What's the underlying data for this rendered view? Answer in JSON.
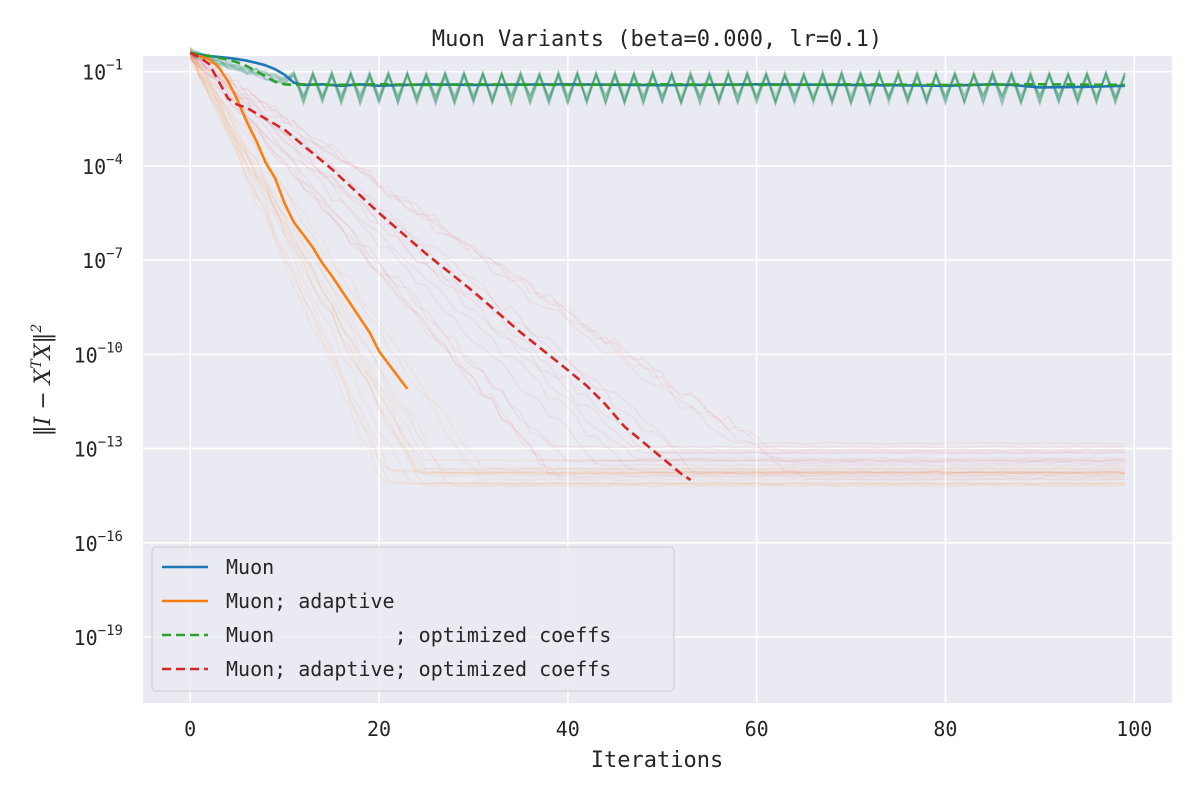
{
  "chart_data": {
    "type": "line",
    "title": "Muon Variants (beta=0.000, lr=0.1)",
    "xlabel": "Iterations",
    "ylabel": "‖I − XᵀX‖²",
    "ylabel_parts": {
      "open": "‖I − X",
      "sup": "T",
      "close": "X‖",
      "power": "2"
    },
    "yscale": "log",
    "xlim": [
      -5,
      104
    ],
    "ylim_log10": [
      -21.1,
      -0.5
    ],
    "xticks": [
      0,
      20,
      40,
      60,
      80,
      100
    ],
    "yticks_exp": [
      -1,
      -4,
      -7,
      -10,
      -13,
      -16,
      -19
    ],
    "ytick_base": "10",
    "grid": true,
    "legend_position": "lower-left",
    "series": [
      {
        "name": "Muon",
        "color": "#1f77b4",
        "dash": "solid",
        "x": [
          0,
          1,
          2,
          3,
          4,
          5,
          6,
          7,
          8,
          9,
          10,
          11,
          12,
          14,
          16,
          18,
          20,
          25,
          30,
          40,
          50,
          60,
          70,
          80,
          85,
          87,
          90,
          95,
          99
        ],
        "log10_y": [
          -0.4,
          -0.45,
          -0.5,
          -0.53,
          -0.56,
          -0.6,
          -0.65,
          -0.72,
          -0.8,
          -0.92,
          -1.1,
          -1.35,
          -1.42,
          -1.4,
          -1.45,
          -1.4,
          -1.45,
          -1.4,
          -1.42,
          -1.4,
          -1.43,
          -1.4,
          -1.42,
          -1.45,
          -1.4,
          -1.42,
          -1.5,
          -1.48,
          -1.45
        ]
      },
      {
        "name": "Muon; adaptive",
        "color": "#ff7f0e",
        "dash": "solid",
        "x": [
          0,
          1,
          2,
          3,
          4,
          5,
          6,
          7,
          8,
          9,
          10,
          11,
          12,
          13,
          14,
          15,
          16,
          17,
          18,
          19,
          20,
          21,
          22,
          23
        ],
        "log10_y": [
          -0.4,
          -0.5,
          -0.6,
          -0.85,
          -1.3,
          -1.9,
          -2.6,
          -3.2,
          -3.9,
          -4.4,
          -5.2,
          -5.8,
          -6.2,
          -6.6,
          -7.1,
          -7.5,
          -7.95,
          -8.4,
          -8.85,
          -9.3,
          -9.9,
          -10.3,
          -10.7,
          -11.1
        ]
      },
      {
        "name": "Muon          ; optimized coeffs",
        "color": "#2ca02c",
        "dash": "dashed",
        "x": [
          0,
          1,
          2,
          3,
          4,
          5,
          6,
          7,
          8,
          9,
          10,
          11,
          12,
          15,
          20,
          25,
          30,
          40,
          50,
          60,
          70,
          80,
          90,
          99
        ],
        "log10_y": [
          -0.4,
          -0.45,
          -0.5,
          -0.55,
          -0.62,
          -0.7,
          -0.82,
          -0.98,
          -1.15,
          -1.32,
          -1.4,
          -1.42,
          -1.4,
          -1.42,
          -1.4,
          -1.42,
          -1.4,
          -1.42,
          -1.4,
          -1.42,
          -1.4,
          -1.42,
          -1.4,
          -1.42
        ]
      },
      {
        "name": "Muon; adaptive; optimized coeffs",
        "color": "#d62728",
        "dash": "dashed",
        "x": [
          0,
          1,
          2,
          3,
          4,
          5,
          6,
          8,
          10,
          15,
          20,
          25,
          30,
          35,
          40,
          42,
          44,
          46,
          48,
          50,
          52,
          53
        ],
        "log10_y": [
          -0.4,
          -0.55,
          -0.75,
          -1.3,
          -1.85,
          -2.05,
          -2.15,
          -2.5,
          -2.85,
          -4.1,
          -5.5,
          -6.8,
          -8.0,
          -9.3,
          -10.5,
          -11.0,
          -11.6,
          -12.3,
          -12.8,
          -13.3,
          -13.8,
          -14.0
        ]
      }
    ]
  }
}
